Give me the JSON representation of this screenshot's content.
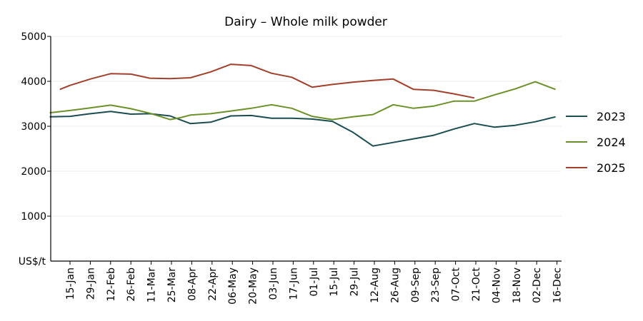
{
  "chart_data": {
    "type": "line",
    "title": "Dairy – Whole milk powder",
    "xlabel": "",
    "ylabel": "US$/t",
    "ylim": [
      0,
      5000
    ],
    "yticks": [
      1000,
      2000,
      3000,
      4000,
      5000
    ],
    "grid": "horizontal",
    "legend_position": "right",
    "categories": [
      "15-Jan",
      "29-Jan",
      "12-Feb",
      "26-Feb",
      "11-Mar",
      "25-Mar",
      "08-Apr",
      "22-Apr",
      "06-May",
      "20-May",
      "03-Jun",
      "17-Jun",
      "01-Jul",
      "15-Jul",
      "29-Jul",
      "12-Aug",
      "26-Aug",
      "09-Sep",
      "23-Sep",
      "07-Oct",
      "21-Oct",
      "04-Nov",
      "18-Nov",
      "02-Dec",
      "16-Dec"
    ],
    "series": [
      {
        "name": "2023",
        "color": "#1a4d4f",
        "points": [
          {
            "x": "01-Jan",
            "y": 3210
          },
          {
            "x": "15-Jan",
            "y": 3220
          },
          {
            "x": "29-Jan",
            "y": 3280
          },
          {
            "x": "12-Feb",
            "y": 3330
          },
          {
            "x": "26-Feb",
            "y": 3270
          },
          {
            "x": "11-Mar",
            "y": 3280
          },
          {
            "x": "25-Mar",
            "y": 3230
          },
          {
            "x": "08-Apr",
            "y": 3060
          },
          {
            "x": "22-Apr",
            "y": 3090
          },
          {
            "x": "06-May",
            "y": 3230
          },
          {
            "x": "20-May",
            "y": 3240
          },
          {
            "x": "03-Jun",
            "y": 3180
          },
          {
            "x": "17-Jun",
            "y": 3180
          },
          {
            "x": "01-Jul",
            "y": 3160
          },
          {
            "x": "15-Jul",
            "y": 3110
          },
          {
            "x": "29-Jul",
            "y": 2870
          },
          {
            "x": "12-Aug",
            "y": 2560
          },
          {
            "x": "26-Aug",
            "y": 2640
          },
          {
            "x": "09-Sep",
            "y": 2720
          },
          {
            "x": "23-Sep",
            "y": 2800
          },
          {
            "x": "07-Oct",
            "y": 2940
          },
          {
            "x": "21-Oct",
            "y": 3060
          },
          {
            "x": "04-Nov",
            "y": 2980
          },
          {
            "x": "18-Nov",
            "y": 3020
          },
          {
            "x": "02-Dec",
            "y": 3100
          },
          {
            "x": "16-Dec",
            "y": 3210
          }
        ]
      },
      {
        "name": "2024",
        "color": "#6b9128",
        "points": [
          {
            "x": "01-Jan",
            "y": 3300
          },
          {
            "x": "15-Jan",
            "y": 3350
          },
          {
            "x": "29-Jan",
            "y": 3410
          },
          {
            "x": "12-Feb",
            "y": 3470
          },
          {
            "x": "26-Feb",
            "y": 3390
          },
          {
            "x": "11-Mar",
            "y": 3290
          },
          {
            "x": "25-Mar",
            "y": 3150
          },
          {
            "x": "01-Apr",
            "y": 3190
          },
          {
            "x": "08-Apr",
            "y": 3250
          },
          {
            "x": "22-Apr",
            "y": 3280
          },
          {
            "x": "06-May",
            "y": 3340
          },
          {
            "x": "20-May",
            "y": 3400
          },
          {
            "x": "03-Jun",
            "y": 3480
          },
          {
            "x": "17-Jun",
            "y": 3400
          },
          {
            "x": "01-Jul",
            "y": 3220
          },
          {
            "x": "15-Jul",
            "y": 3150
          },
          {
            "x": "29-Jul",
            "y": 3210
          },
          {
            "x": "12-Aug",
            "y": 3260
          },
          {
            "x": "26-Aug",
            "y": 3480
          },
          {
            "x": "09-Sep",
            "y": 3400
          },
          {
            "x": "23-Sep",
            "y": 3450
          },
          {
            "x": "07-Oct",
            "y": 3560
          },
          {
            "x": "21-Oct",
            "y": 3560
          },
          {
            "x": "04-Nov",
            "y": 3700
          },
          {
            "x": "18-Nov",
            "y": 3830
          },
          {
            "x": "02-Dec",
            "y": 3990
          },
          {
            "x": "16-Dec",
            "y": 3820
          }
        ]
      },
      {
        "name": "2025",
        "color": "#a3402b",
        "points": [
          {
            "x": "08-Jan",
            "y": 3820
          },
          {
            "x": "15-Jan",
            "y": 3910
          },
          {
            "x": "29-Jan",
            "y": 4050
          },
          {
            "x": "12-Feb",
            "y": 4170
          },
          {
            "x": "26-Feb",
            "y": 4160
          },
          {
            "x": "11-Mar",
            "y": 4070
          },
          {
            "x": "25-Mar",
            "y": 4060
          },
          {
            "x": "08-Apr",
            "y": 4080
          },
          {
            "x": "22-Apr",
            "y": 4210
          },
          {
            "x": "06-May",
            "y": 4380
          },
          {
            "x": "20-May",
            "y": 4350
          },
          {
            "x": "03-Jun",
            "y": 4180
          },
          {
            "x": "17-Jun",
            "y": 4090
          },
          {
            "x": "01-Jul",
            "y": 3870
          },
          {
            "x": "15-Jul",
            "y": 3930
          },
          {
            "x": "29-Jul",
            "y": 3980
          },
          {
            "x": "12-Aug",
            "y": 4020
          },
          {
            "x": "26-Aug",
            "y": 4050
          },
          {
            "x": "09-Sep",
            "y": 3820
          },
          {
            "x": "23-Sep",
            "y": 3800
          },
          {
            "x": "07-Oct",
            "y": 3720
          },
          {
            "x": "21-Oct",
            "y": 3630
          }
        ]
      }
    ]
  }
}
